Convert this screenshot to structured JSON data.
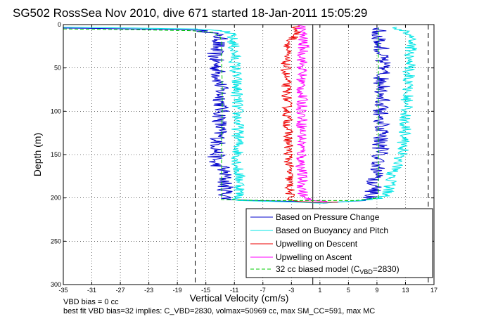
{
  "chart_data": {
    "type": "line",
    "title": "SG502 RossSea Nov 2010, dive 671 started 18-Jan-2011 15:05:29",
    "xlabel": "Vertical Velocity (cm/s)",
    "ylabel": "Depth (m)",
    "xlim": [
      -35,
      17
    ],
    "ylim": [
      300,
      0
    ],
    "y_reversed": true,
    "grid": true,
    "x_ticks": [
      -35,
      -31,
      -27,
      -23,
      -19,
      -15,
      -11,
      -7,
      -3,
      1,
      5,
      9,
      13,
      17
    ],
    "y_ticks": [
      0,
      50,
      100,
      150,
      200,
      250,
      300
    ],
    "legend_position": "bottom-right",
    "reference_lines": [
      {
        "orientation": "vertical",
        "x": -16.5,
        "style": "dashed",
        "color": "#000000"
      },
      {
        "orientation": "vertical",
        "x": 16.2,
        "style": "dashed",
        "color": "#000000"
      },
      {
        "orientation": "vertical",
        "x": 0,
        "style": "solid",
        "color": "#000000"
      }
    ],
    "series": [
      {
        "name": "Based on Pressure Change",
        "color": "#0000cc",
        "style": "solid",
        "noise": 1.2,
        "points": [
          [
            -35,
            4
          ],
          [
            -25,
            5
          ],
          [
            -17,
            6
          ],
          [
            -14,
            9
          ],
          [
            -13.2,
            14
          ],
          [
            -13,
            18
          ],
          [
            -13.5,
            25
          ],
          [
            -13.8,
            35
          ],
          [
            -13.4,
            50
          ],
          [
            -13,
            70
          ],
          [
            -12.8,
            90
          ],
          [
            -13,
            110
          ],
          [
            -13.2,
            130
          ],
          [
            -13.5,
            150
          ],
          [
            -14,
            160
          ],
          [
            -12.6,
            165
          ],
          [
            -12.3,
            180
          ],
          [
            -12.2,
            195
          ],
          [
            -12,
            202
          ],
          [
            -8,
            203
          ],
          [
            -3,
            204
          ],
          [
            0,
            205
          ],
          [
            1.5,
            206
          ],
          [
            3,
            205
          ],
          [
            5,
            204
          ],
          [
            7.5,
            203
          ],
          [
            8.3,
            198
          ],
          [
            8.6,
            185
          ],
          [
            9.2,
            170
          ],
          [
            9.4,
            150
          ],
          [
            9.6,
            120
          ],
          [
            9.5,
            100
          ],
          [
            9.8,
            80
          ],
          [
            9.6,
            60
          ],
          [
            9.8,
            40
          ],
          [
            9.6,
            25
          ],
          [
            9.4,
            12
          ],
          [
            9.3,
            4
          ]
        ]
      },
      {
        "name": "Based on Buoyancy and Pitch",
        "color": "#00e5e5",
        "style": "solid",
        "noise": 0.9,
        "points": [
          [
            -35,
            3
          ],
          [
            -25,
            4
          ],
          [
            -17,
            5
          ],
          [
            -12,
            8
          ],
          [
            -11.5,
            12
          ],
          [
            -11.2,
            20
          ],
          [
            -11,
            35
          ],
          [
            -10.8,
            60
          ],
          [
            -10.6,
            90
          ],
          [
            -10.5,
            120
          ],
          [
            -10.5,
            150
          ],
          [
            -10.6,
            165
          ],
          [
            -10.2,
            180
          ],
          [
            -10.2,
            190
          ],
          [
            -10.4,
            198
          ],
          [
            -10.4,
            203
          ],
          [
            -6,
            204
          ],
          [
            -2,
            205
          ],
          [
            1,
            206
          ],
          [
            3.5,
            205
          ],
          [
            6.5,
            203
          ],
          [
            9.8,
            200
          ],
          [
            10.8,
            190
          ],
          [
            11,
            175
          ],
          [
            11.6,
            165
          ],
          [
            12.5,
            150
          ],
          [
            12.8,
            130
          ],
          [
            13,
            110
          ],
          [
            13.2,
            90
          ],
          [
            13.4,
            70
          ],
          [
            13.5,
            50
          ],
          [
            13.7,
            30
          ],
          [
            14,
            20
          ],
          [
            13.6,
            12
          ],
          [
            12.5,
            6
          ],
          [
            11.8,
            3
          ]
        ]
      },
      {
        "name": "Upwelling on Descent",
        "color": "#ee0000",
        "style": "solid",
        "noise": 0.7,
        "points": [
          [
            -2.5,
            2
          ],
          [
            -2.2,
            10
          ],
          [
            -3.2,
            20
          ],
          [
            -3.8,
            35
          ],
          [
            -3.8,
            60
          ],
          [
            -3.6,
            90
          ],
          [
            -3.5,
            120
          ],
          [
            -3.4,
            150
          ],
          [
            -3.3,
            180
          ],
          [
            -3.2,
            200
          ],
          [
            -2.8,
            203
          ],
          [
            -2,
            204
          ],
          [
            0,
            205
          ],
          [
            1,
            205
          ],
          [
            3.5,
            205
          ]
        ]
      },
      {
        "name": "Upwelling on Ascent",
        "color": "#ff00ff",
        "style": "solid",
        "noise": 0.8,
        "points": [
          [
            -1.7,
            1
          ],
          [
            -1.5,
            10
          ],
          [
            -1.3,
            25
          ],
          [
            -1.5,
            45
          ],
          [
            -1.6,
            70
          ],
          [
            -1.5,
            95
          ],
          [
            -1.5,
            120
          ],
          [
            -1.6,
            145
          ],
          [
            -1.6,
            165
          ],
          [
            -1.5,
            185
          ],
          [
            -1.3,
            200
          ],
          [
            0,
            203
          ],
          [
            2,
            204
          ]
        ]
      },
      {
        "name": "32 cc biased model (C_VBD=2830)",
        "color": "#00cc00",
        "style": "dashed",
        "noise": 0,
        "points": [
          [
            -35,
            5
          ],
          [
            -25,
            6
          ],
          [
            -17,
            7
          ],
          [
            -14,
            9
          ],
          [
            -13,
            14
          ],
          [
            -12.8,
            20
          ],
          [
            -12.8,
            40
          ],
          [
            -12.7,
            70
          ],
          [
            -12.7,
            100
          ],
          [
            -12.8,
            130
          ],
          [
            -12.8,
            160
          ],
          [
            -12.8,
            190
          ],
          [
            -12.8,
            202
          ],
          [
            -6,
            203
          ],
          [
            0,
            203
          ],
          [
            6,
            203
          ],
          [
            9.2,
            200
          ],
          [
            9.2,
            170
          ],
          [
            9.2,
            140
          ],
          [
            9.2,
            100
          ],
          [
            9.2,
            60
          ],
          [
            9.2,
            30
          ],
          [
            9.2,
            10
          ],
          [
            9.2,
            4
          ]
        ]
      }
    ]
  },
  "legend": {
    "entries": [
      {
        "text": "Based on Pressure Change"
      },
      {
        "text": "Based on Buoyancy and Pitch"
      },
      {
        "text": "Upwelling on Descent"
      },
      {
        "text": "Upwelling on Ascent"
      },
      {
        "text_main": "32 cc biased model (C",
        "text_sub": "VBD",
        "text_end": "=2830)"
      }
    ]
  },
  "footer": {
    "line1": "VBD bias = 0 cc",
    "line2": "best fit VBD bias=32 implies: C_VBD=2830, volmax=50969 cc, max SM_CC=591, max MC"
  }
}
